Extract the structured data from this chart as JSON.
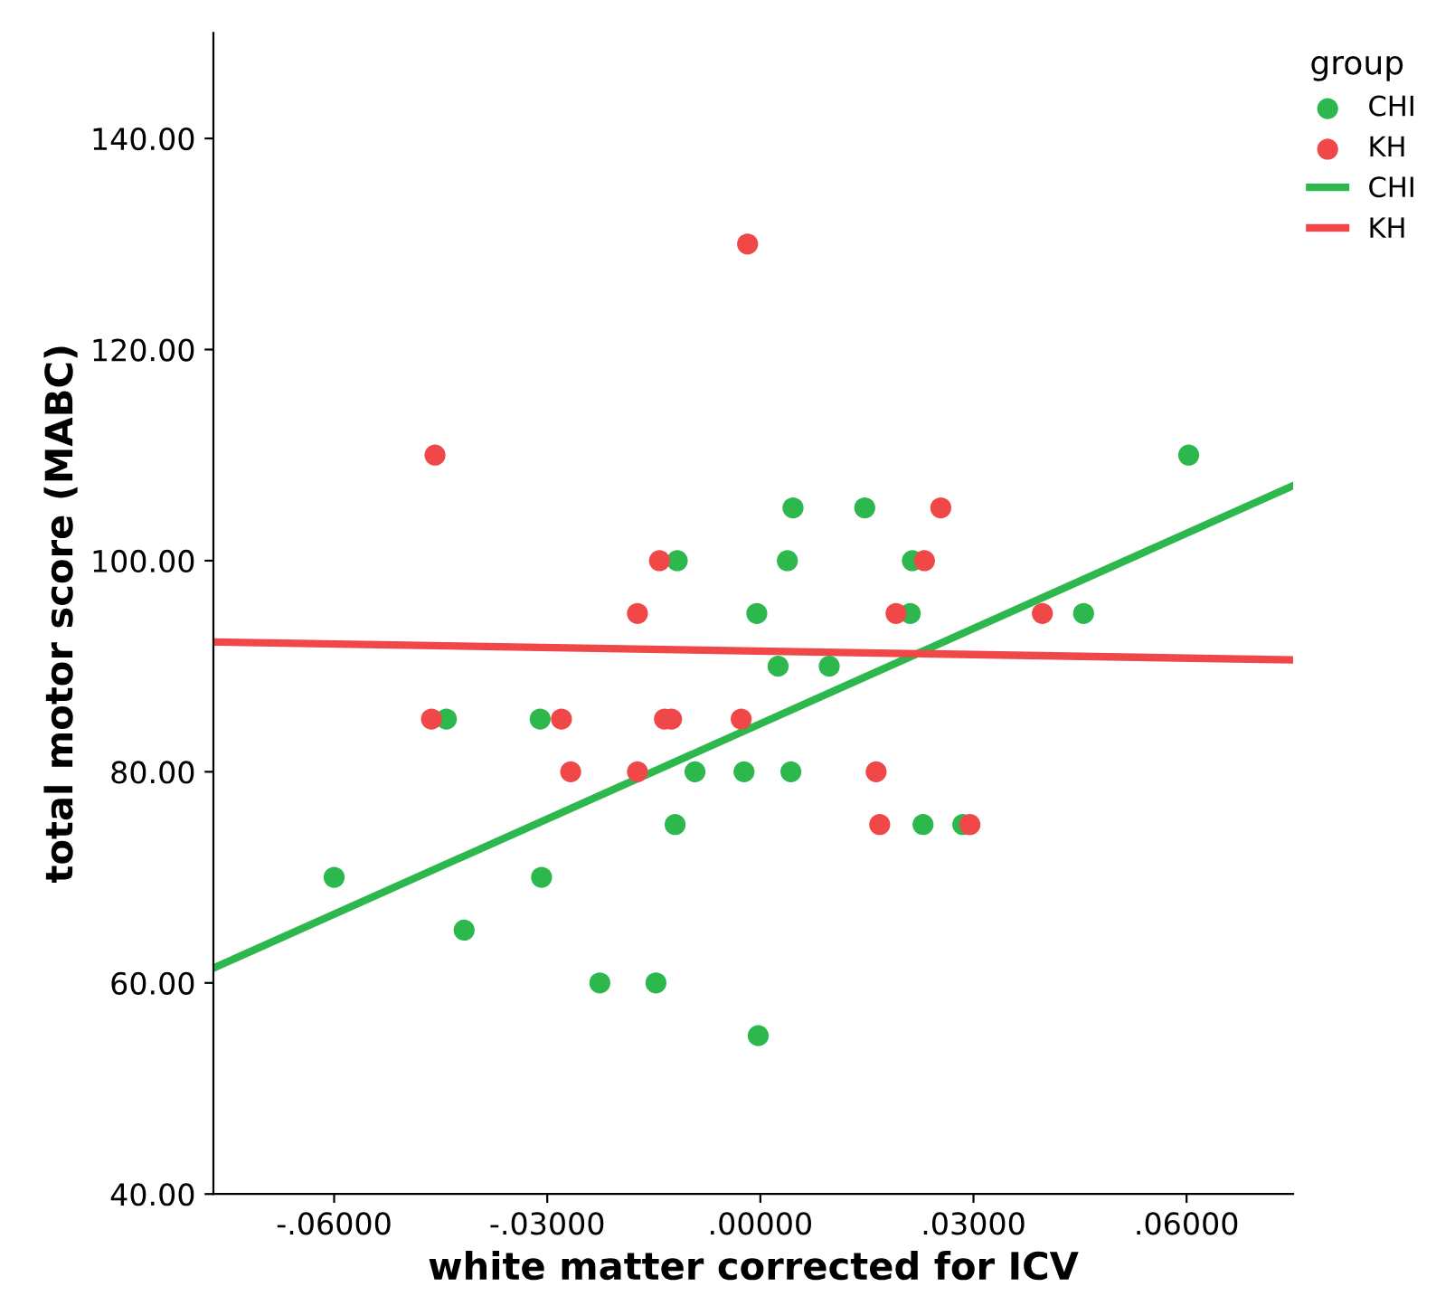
{
  "chart_data": {
    "type": "scatter",
    "xlabel": "white matter corrected for ICV",
    "ylabel": "total motor score (MABC)",
    "legend_title": "group",
    "legend": "right",
    "grid": false,
    "xlim": [
      -0.077,
      0.075
    ],
    "ylim": [
      40,
      150
    ],
    "xticks": [
      {
        "value": -0.06,
        "label": "-.06000"
      },
      {
        "value": -0.03,
        "label": "-.03000"
      },
      {
        "value": 0,
        "label": ".00000"
      },
      {
        "value": 0.03,
        "label": ".03000"
      },
      {
        "value": 0.06,
        "label": ".06000"
      }
    ],
    "yticks": [
      {
        "value": 40,
        "label": "40.00"
      },
      {
        "value": 60,
        "label": "60.00"
      },
      {
        "value": 80,
        "label": "80.00"
      },
      {
        "value": 100,
        "label": "100.00"
      },
      {
        "value": 120,
        "label": "120.00"
      },
      {
        "value": 140,
        "label": "140.00"
      }
    ],
    "series": [
      {
        "name": "CHI",
        "marker": "circle",
        "color": "#2db84d",
        "x": [
          -0.0117,
          -0.0005,
          -0.0442,
          -0.031,
          0.0046,
          0.0147,
          0.0038,
          0.0214,
          0.0211,
          0.0455,
          0.0603,
          0.0025,
          0.0097,
          -0.0092,
          -0.0023,
          0.0043,
          -0.012,
          0.0229,
          0.0285,
          -0.06,
          -0.0308,
          -0.0417,
          -0.0226,
          -0.0147,
          -0.0003
        ],
        "values": [
          100,
          95,
          85,
          85,
          105,
          105,
          100,
          100,
          95,
          95,
          110,
          90,
          90,
          80,
          80,
          80,
          75,
          75,
          75,
          70,
          70,
          65,
          60,
          60,
          55
        ]
      },
      {
        "name": "KH",
        "marker": "circle",
        "color": "#f04848",
        "x": [
          -0.0018,
          -0.0458,
          -0.0142,
          -0.0173,
          -0.0463,
          -0.028,
          -0.0135,
          -0.0125,
          -0.0027,
          -0.0267,
          -0.0173,
          0.0254,
          0.0231,
          0.0191,
          0.0397,
          0.0163,
          0.0168,
          0.0295
        ],
        "values": [
          130,
          110,
          100,
          95,
          85,
          85,
          85,
          85,
          85,
          80,
          80,
          105,
          100,
          95,
          95,
          80,
          75,
          75
        ]
      },
      {
        "name": "CHI",
        "type": "line",
        "marker": "none",
        "color": "#2db84d",
        "x": [
          -0.077,
          0.075
        ],
        "values": [
          61.4,
          107.1
        ]
      },
      {
        "name": "KH",
        "type": "line",
        "marker": "none",
        "color": "#f04848",
        "x": [
          -0.077,
          0.075
        ],
        "values": [
          92.3,
          90.6
        ]
      }
    ]
  }
}
